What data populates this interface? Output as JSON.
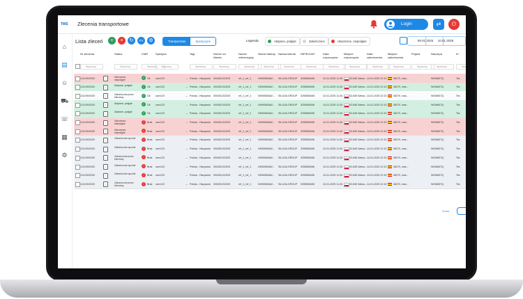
{
  "header": {
    "logo": "TMS",
    "title": "Zlecenia transportowe",
    "login_label": "Login",
    "swap_icon": "swap-icon",
    "power_icon": "power-icon",
    "bell_icon": "bell-icon"
  },
  "sidebar": {
    "icons": [
      "home-icon",
      "orders-icon",
      "users-icon",
      "truck-icon",
      "chat-icon",
      "calculator-icon",
      "settings-icon"
    ]
  },
  "toolbar": {
    "list_title": "Lista zleceń",
    "fv_label": "FV",
    "tabs": [
      {
        "label": "Transportowe",
        "active": true
      },
      {
        "label": "Spedycyjne",
        "active": false
      }
    ],
    "legend_label": "Legenda:",
    "legend": [
      {
        "label": "Aktywne, podjęte",
        "color": "#2e9e5b"
      },
      {
        "label": "Zakończone",
        "color": "#d7d7d7"
      },
      {
        "label": "Utworzone, niepodjęte",
        "color": "#e53935"
      }
    ],
    "date_from": "09.01.2025",
    "date_to": "10.01.2025"
  },
  "table": {
    "columns": [
      "Nr zlecenia",
      "Status",
      "CMR",
      "Spedytor",
      "Tagi",
      "Numer od klienta",
      "Numer referencyjny",
      "Numer faktury",
      "Nazwa klienta",
      "NIP/EUVAT",
      "Data rozpoczęcia",
      "Miejsce rozpoczęcia",
      "Data zakończenia",
      "Miejsce zakończenia",
      "Pojazd",
      "Naczepa",
      "Ki"
    ],
    "filter_placeholder": "Wyszukaj",
    "rows": [
      {
        "tone": "red",
        "nr": "1/11/09/2025",
        "status": "Utworzone, niepodjęte",
        "cmr": "ok",
        "cmr_label": "Ok",
        "sped": "user123",
        "tagi": "Polska - Hiszpania",
        "numer_kl": "00045/12/2025",
        "ref": "ref_1_ref_1",
        "fakt": "9495/5845d2...",
        "klient": "SILUGA GROUP",
        "nip": "3255556456",
        "data_s": "10-01-2025 11:26",
        "start": "02-845 Warsz...",
        "data_e": "14-01-2025 12:15",
        "end": "08270, mas...",
        "pojazd": "",
        "naczepa": "WGM6572j",
        "ki": "Tes"
      },
      {
        "tone": "green",
        "nr": "1/11/09/2025",
        "status": "Aktywne, podjęte",
        "cmr": "ok",
        "cmr_label": "Ok",
        "sped": "user123",
        "tagi": "Polska - Hiszpania",
        "numer_kl": "00045/12/2025",
        "ref": "ref_1_ref_1",
        "fakt": "9495/5845d2...",
        "klient": "SILUGA GROUP",
        "nip": "3255556456",
        "data_s": "10-01-2025 11:26",
        "start": "02-845 Warsz...",
        "data_e": "14-01-2025 12:15",
        "end": "08270, mas...",
        "pojazd": "",
        "naczepa": "WGM6572j",
        "ki": "Tes"
      },
      {
        "tone": "white",
        "nr": "1/11/09/2025",
        "status": "Zakończone przez kierowcę",
        "cmr": "ok",
        "cmr_label": "Ok",
        "sped": "user123",
        "tagi": "Polska - Hiszpania",
        "numer_kl": "00045/12/2025",
        "ref": "ref_1_ref_1",
        "fakt": "9495/5845d2...",
        "klient": "SILUGA GROUP",
        "nip": "3255556456",
        "data_s": "10-01-2025 11:26",
        "start": "02-845 Warsz...",
        "data_e": "14-01-2025 12:15",
        "end": "08270, mas...",
        "pojazd": "",
        "naczepa": "WGM6572j",
        "ki": "Tes"
      },
      {
        "tone": "green",
        "nr": "1/11/09/2025",
        "status": "Aktywne, podjęte",
        "cmr": "ok",
        "cmr_label": "Ok",
        "sped": "user123",
        "tagi": "Polska - Hiszpania",
        "numer_kl": "00045/12/2025",
        "ref": "ref_1_ref_1",
        "fakt": "9495/5845d2...",
        "klient": "SILUGA GROUP",
        "nip": "3255556456",
        "data_s": "10-01-2025 11:26",
        "start": "02-845 Warsz...",
        "data_e": "14-01-2025 12:15",
        "end": "08270, mas...",
        "pojazd": "",
        "naczepa": "WGM6572j",
        "ki": "Tes"
      },
      {
        "tone": "green",
        "nr": "1/11/09/2025",
        "status": "Aktywne, podjęte",
        "cmr": "ok",
        "cmr_label": "Ok",
        "sped": "user123",
        "tagi": "Polska - Hiszpania",
        "numer_kl": "00045/12/2025",
        "ref": "ref_1_ref_1",
        "fakt": "9495/5845d2...",
        "klient": "SILUGA GROUP",
        "nip": "3255556456",
        "data_s": "10-01-2025 11:26",
        "start": "02-845 Warsz...",
        "data_e": "14-01-2025 12:15",
        "end": "08270, mas...",
        "pojazd": "",
        "naczepa": "WGM6572j",
        "ki": "Tes"
      },
      {
        "tone": "red",
        "nr": "1/11/09/2025",
        "status": "Utworzone, niepodjęte",
        "cmr": "none",
        "cmr_label": "Brak",
        "sped": "user123",
        "tagi": "Polska - Hiszpania",
        "numer_kl": "00045/12/2025",
        "ref": "ref_1_ref_1",
        "fakt": "9495/5845d2...",
        "klient": "SILUGA GROUP",
        "nip": "3255556456",
        "data_s": "10-01-2025 11:26",
        "start": "02-845 Warsz...",
        "data_e": "14-01-2025 12:15",
        "end": "08270, mas...",
        "pojazd": "",
        "naczepa": "WGM6572j",
        "ki": "Tes"
      },
      {
        "tone": "red",
        "nr": "1/11/09/2025",
        "status": "Utworzone, niepodjęte",
        "cmr": "none",
        "cmr_label": "Brak",
        "sped": "user123",
        "tagi": "Polska - Hiszpania",
        "numer_kl": "00045/12/2025",
        "ref": "ref_1_ref_1",
        "fakt": "9495/5845d2...",
        "klient": "SILUGA GROUP",
        "nip": "3255556456",
        "data_s": "10-01-2025 11:26",
        "start": "02-845 Warsz...",
        "data_e": "14-01-2025 12:15",
        "end": "08270, mas...",
        "pojazd": "",
        "naczepa": "WGM6572j",
        "ki": "Tes"
      },
      {
        "tone": "gray",
        "nr": "1/11/09/2025",
        "status": "Zakończone ręcznie",
        "cmr": "none",
        "cmr_label": "Brak",
        "sped": "user123",
        "tagi": "Polska - Hiszpania",
        "numer_kl": "00045/12/2025",
        "ref": "ref_1_ref_1",
        "fakt": "9495/5845d2...",
        "klient": "SILUGA GROUP",
        "nip": "3255556456",
        "data_s": "10-01-2025 11:26",
        "start": "02-845 Warsz...",
        "data_e": "14-01-2025 12:15",
        "end": "08270, mas...",
        "pojazd": "",
        "naczepa": "WGM6572j",
        "ki": "Tes"
      },
      {
        "tone": "gray",
        "nr": "1/11/09/2025",
        "status": "Zakończone ręcznie",
        "cmr": "none",
        "cmr_label": "Brak",
        "sped": "user123",
        "tagi": "Polska - Hiszpania",
        "numer_kl": "00045/12/2025",
        "ref": "ref_1_ref_1",
        "fakt": "9495/5845d2...",
        "klient": "SILUGA GROUP",
        "nip": "3255556456",
        "data_s": "10-01-2025 11:26",
        "start": "02-845 Warsz...",
        "data_e": "14-01-2025 12:15",
        "end": "08270, mas...",
        "pojazd": "",
        "naczepa": "WGM6572j",
        "ki": "Tes"
      },
      {
        "tone": "gray",
        "nr": "1/11/09/2025",
        "status": "Zakończone przez kierowcę",
        "cmr": "none",
        "cmr_label": "Brak",
        "sped": "user123",
        "tagi": "Polska - Hiszpania",
        "numer_kl": "00045/12/2025",
        "ref": "ref_1_ref_1",
        "fakt": "9495/5845d2...",
        "klient": "SILUGA GROUP",
        "nip": "3255556456",
        "data_s": "10-01-2025 11:26",
        "start": "02-845 Warsz...",
        "data_e": "14-01-2025 12:15",
        "end": "08270, mas...",
        "pojazd": "",
        "naczepa": "WGM6572j",
        "ki": "Tes"
      },
      {
        "tone": "gray",
        "nr": "1/11/09/2025",
        "status": "Zakończone ręcznie",
        "cmr": "none",
        "cmr_label": "Brak",
        "sped": "user123",
        "tagi": "Polska - Hiszpania",
        "numer_kl": "00045/12/2025",
        "ref": "ref_1_ref_1",
        "fakt": "9495/5845d2...",
        "klient": "SILUGA GROUP",
        "nip": "3255556456",
        "data_s": "10-01-2025 11:26",
        "start": "02-845 Warsz...",
        "data_e": "14-01-2025 12:15",
        "end": "08270, mas...",
        "pojazd": "",
        "naczepa": "WGM6572j",
        "ki": "Tes"
      },
      {
        "tone": "gray",
        "nr": "1/11/09/2025",
        "status": "Zakończone ręcznie",
        "cmr": "none",
        "cmr_label": "Brak",
        "sped": "user123",
        "tagi": "Polska - Hiszpania",
        "numer_kl": "00045/12/2025",
        "ref": "ref_1_ref_1",
        "fakt": "9495/5845d2...",
        "klient": "SILUGA GROUP",
        "nip": "3255556456",
        "data_s": "10-01-2025 11:26",
        "start": "02-845 Warsz...",
        "data_e": "14-01-2025 12:15",
        "end": "08270, mas...",
        "pojazd": "",
        "naczepa": "WGM6572j",
        "ki": "Tes"
      },
      {
        "tone": "gray",
        "nr": "1/11/09/2025",
        "status": "Zakończone przez kierowcę",
        "cmr": "none",
        "cmr_label": "Brak",
        "sped": "user123",
        "tagi": "Polska - Hiszpania",
        "numer_kl": "00045/12/2025",
        "ref": "ref_1_ref_1",
        "fakt": "9495/5845d2...",
        "klient": "SILUGA GROUP",
        "nip": "3255556456",
        "data_s": "10-01-2025 11:26",
        "start": "02-845 Warsz...",
        "data_e": "14-01-2025 12:15",
        "end": "08270, mas...",
        "pojazd": "",
        "naczepa": "WGM6572j",
        "ki": "Tes"
      }
    ]
  },
  "footer": {
    "zoom_label": "Zumo"
  }
}
